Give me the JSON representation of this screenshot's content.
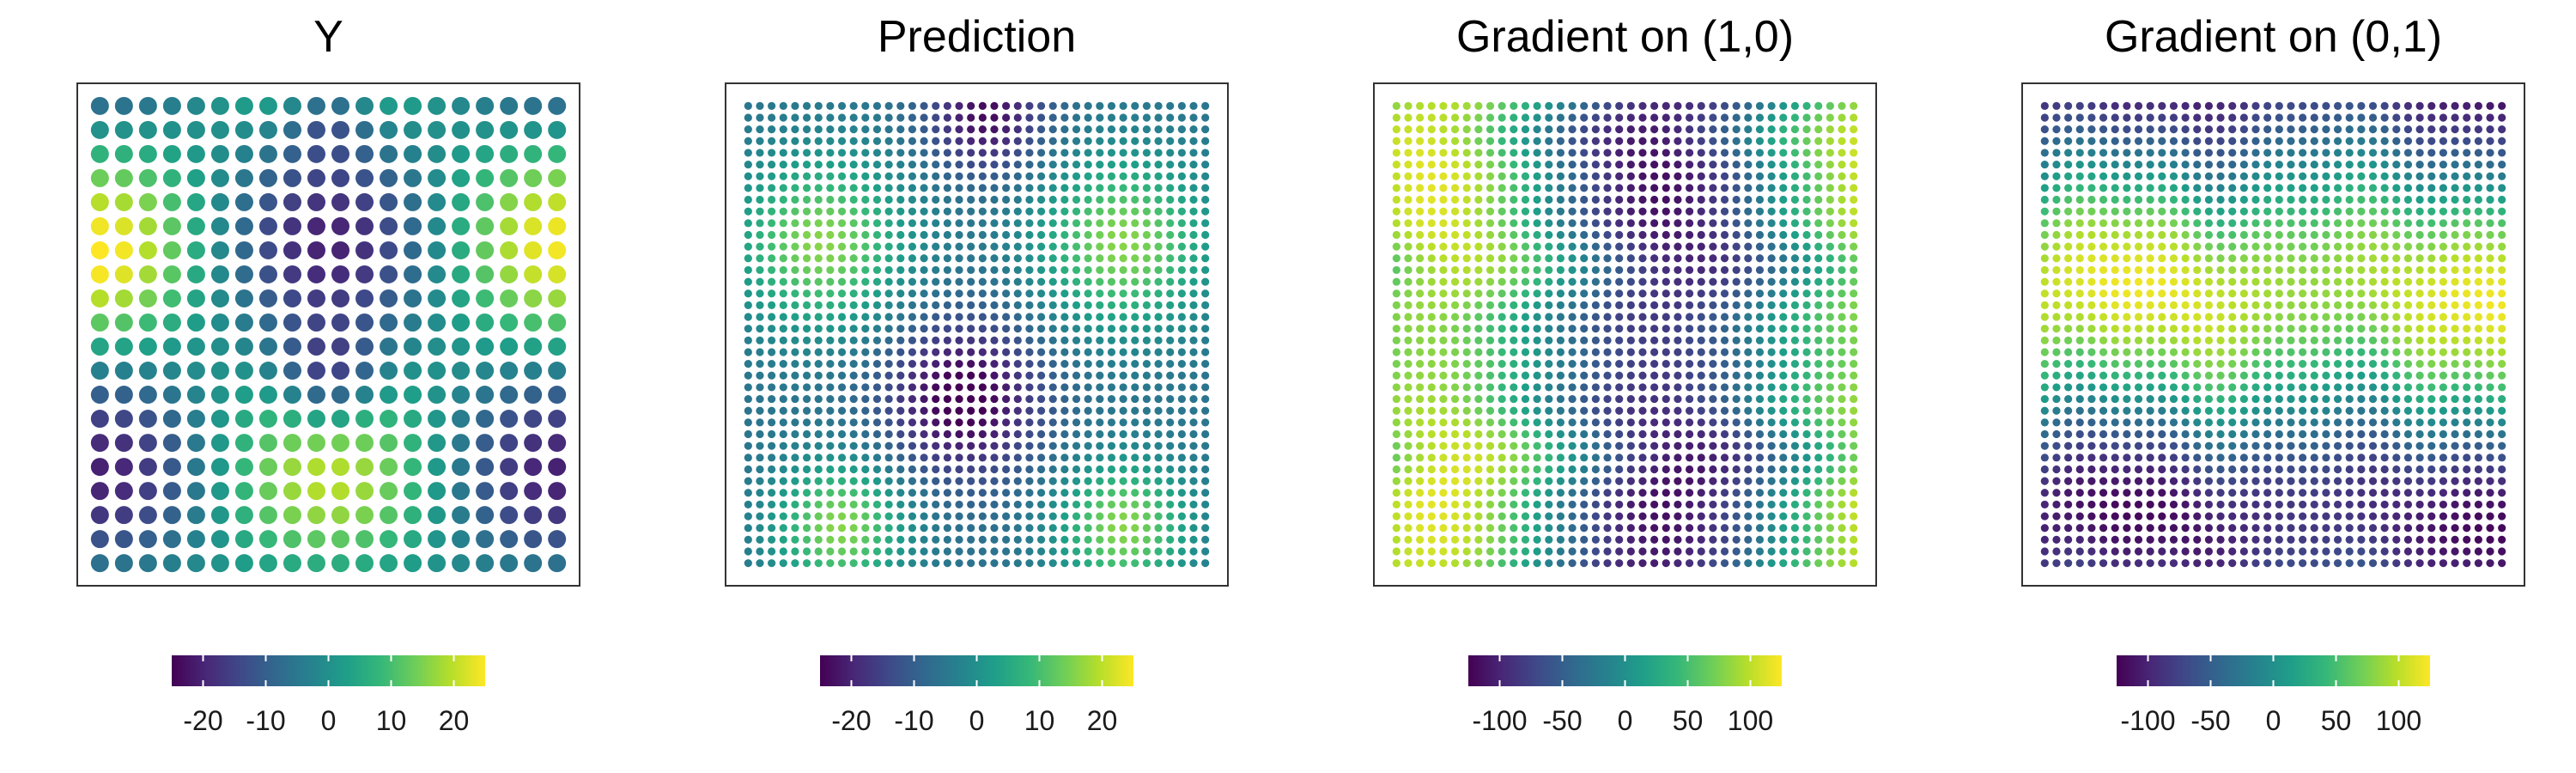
{
  "chart_data": [
    {
      "type": "scatter",
      "title": "Y",
      "grid": "20x20",
      "field": "y",
      "color_scale": "viridis",
      "colorbar": {
        "range": [
          -25,
          25
        ],
        "ticks": [
          -20,
          -10,
          0,
          10,
          20
        ],
        "tick_labels": [
          "-20",
          "-10",
          "0",
          "10",
          "20"
        ]
      }
    },
    {
      "type": "scatter",
      "title": "Prediction",
      "grid": "40x40",
      "field": "prediction",
      "color_scale": "viridis",
      "colorbar": {
        "range": [
          -25,
          25
        ],
        "ticks": [
          -20,
          -10,
          0,
          10,
          20
        ],
        "tick_labels": [
          "-20",
          "-10",
          "0",
          "10",
          "20"
        ]
      }
    },
    {
      "type": "scatter",
      "title": "Gradient on (1,0)",
      "grid": "40x40",
      "field": "gradient_x",
      "color_scale": "viridis",
      "colorbar": {
        "range": [
          -125,
          125
        ],
        "ticks": [
          -100,
          -50,
          0,
          50,
          100
        ],
        "tick_labels": [
          "-100",
          "-50",
          "0",
          "50",
          "100"
        ]
      }
    },
    {
      "type": "scatter",
      "title": "Gradient on (0,1)",
      "grid": "40x40",
      "field": "gradient_y",
      "color_scale": "viridis",
      "colorbar": {
        "range": [
          -125,
          125
        ],
        "ticks": [
          -100,
          -50,
          0,
          50,
          100
        ],
        "tick_labels": [
          "-100",
          "-50",
          "0",
          "50",
          "100"
        ]
      }
    }
  ]
}
